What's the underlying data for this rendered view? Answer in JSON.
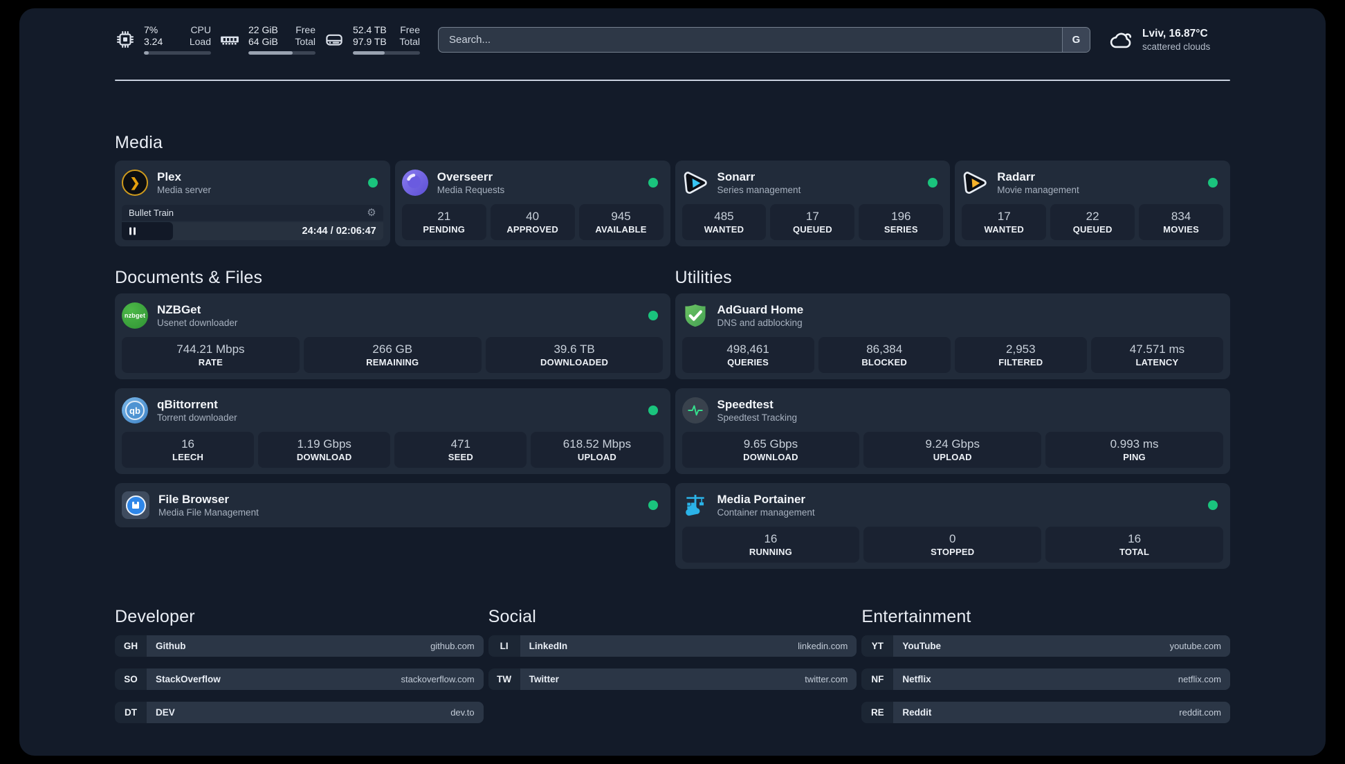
{
  "topbar": {
    "stats": [
      {
        "icon": "cpu-icon",
        "value_top": "7%",
        "value_bottom": "3.24",
        "label_top": "CPU",
        "label_bottom": "Load",
        "progress_pct": 7
      },
      {
        "icon": "ram-icon",
        "value_top": "22 GiB",
        "value_bottom": "64 GiB",
        "label_top": "Free",
        "label_bottom": "Total",
        "progress_pct": 66
      },
      {
        "icon": "disk-icon",
        "value_top": "52.4 TB",
        "value_bottom": "97.9 TB",
        "label_top": "Free",
        "label_bottom": "Total",
        "progress_pct": 47
      }
    ],
    "search": {
      "placeholder": "Search...",
      "provider_button": "G"
    },
    "weather": {
      "icon": "cloud-icon",
      "location": "Lviv, 16.87°C",
      "condition": "scattered clouds"
    }
  },
  "media": {
    "heading": "Media",
    "plex": {
      "icon": "plex-icon",
      "title": "Plex",
      "subtitle": "Media server",
      "status": "online",
      "now_playing": {
        "title": "Bullet Train",
        "time": "24:44 / 02:06:47",
        "elapsed_pct": 19.5
      }
    },
    "cards": [
      {
        "icon": "overseerr-icon",
        "title": "Overseerr",
        "subtitle": "Media Requests",
        "status": "online",
        "stats": [
          {
            "value": "21",
            "label": "PENDING"
          },
          {
            "value": "40",
            "label": "APPROVED"
          },
          {
            "value": "945",
            "label": "AVAILABLE"
          }
        ]
      },
      {
        "icon": "sonarr-icon",
        "title": "Sonarr",
        "subtitle": "Series management",
        "status": "online",
        "stats": [
          {
            "value": "485",
            "label": "WANTED"
          },
          {
            "value": "17",
            "label": "QUEUED"
          },
          {
            "value": "196",
            "label": "SERIES"
          }
        ]
      },
      {
        "icon": "radarr-icon",
        "title": "Radarr",
        "subtitle": "Movie management",
        "status": "online",
        "stats": [
          {
            "value": "17",
            "label": "WANTED"
          },
          {
            "value": "22",
            "label": "QUEUED"
          },
          {
            "value": "834",
            "label": "MOVIES"
          }
        ]
      }
    ]
  },
  "documents": {
    "heading": "Documents & Files",
    "cards": [
      {
        "icon": "nzbget-icon",
        "icon_text": "nzbget",
        "title": "NZBGet",
        "subtitle": "Usenet downloader",
        "status": "online",
        "stats": [
          {
            "value": "744.21 Mbps",
            "label": "RATE"
          },
          {
            "value": "266 GB",
            "label": "REMAINING"
          },
          {
            "value": "39.6 TB",
            "label": "DOWNLOADED"
          }
        ]
      },
      {
        "icon": "qbittorrent-icon",
        "icon_text": "qb",
        "title": "qBittorrent",
        "subtitle": "Torrent downloader",
        "status": "online",
        "stats": [
          {
            "value": "16",
            "label": "LEECH"
          },
          {
            "value": "1.19 Gbps",
            "label": "DOWNLOAD"
          },
          {
            "value": "471",
            "label": "SEED"
          },
          {
            "value": "618.52 Mbps",
            "label": "UPLOAD"
          }
        ]
      },
      {
        "icon": "filebrowser-icon",
        "title": "File Browser",
        "subtitle": "Media File Management",
        "status": "online",
        "stats": []
      }
    ]
  },
  "utilities": {
    "heading": "Utilities",
    "cards": [
      {
        "icon": "adguard-icon",
        "title": "AdGuard Home",
        "subtitle": "DNS and adblocking",
        "status": "none",
        "stats": [
          {
            "value": "498,461",
            "label": "QUERIES"
          },
          {
            "value": "86,384",
            "label": "BLOCKED"
          },
          {
            "value": "2,953",
            "label": "FILTERED"
          },
          {
            "value": "47.571 ms",
            "label": "LATENCY"
          }
        ]
      },
      {
        "icon": "speedtest-icon",
        "title": "Speedtest",
        "subtitle": "Speedtest Tracking",
        "status": "none",
        "stats": [
          {
            "value": "9.65 Gbps",
            "label": "DOWNLOAD"
          },
          {
            "value": "9.24 Gbps",
            "label": "UPLOAD"
          },
          {
            "value": "0.993 ms",
            "label": "PING"
          }
        ]
      },
      {
        "icon": "portainer-icon",
        "title": "Media Portainer",
        "subtitle": "Container management",
        "status": "online",
        "stats": [
          {
            "value": "16",
            "label": "RUNNING"
          },
          {
            "value": "0",
            "label": "STOPPED"
          },
          {
            "value": "16",
            "label": "TOTAL"
          }
        ]
      }
    ]
  },
  "links": {
    "developer": {
      "heading": "Developer",
      "items": [
        {
          "abbr": "GH",
          "name": "Github",
          "url": "github.com"
        },
        {
          "abbr": "SO",
          "name": "StackOverflow",
          "url": "stackoverflow.com"
        },
        {
          "abbr": "DT",
          "name": "DEV",
          "url": "dev.to"
        }
      ]
    },
    "social": {
      "heading": "Social",
      "items": [
        {
          "abbr": "LI",
          "name": "LinkedIn",
          "url": "linkedin.com"
        },
        {
          "abbr": "TW",
          "name": "Twitter",
          "url": "twitter.com"
        }
      ]
    },
    "entertainment": {
      "heading": "Entertainment",
      "items": [
        {
          "abbr": "YT",
          "name": "YouTube",
          "url": "youtube.com"
        },
        {
          "abbr": "NF",
          "name": "Netflix",
          "url": "netflix.com"
        },
        {
          "abbr": "RE",
          "name": "Reddit",
          "url": "reddit.com"
        }
      ]
    }
  },
  "colors": {
    "status_online": "#1ac47d",
    "plex_amber": "#e5a00d",
    "sonarr_blue": "#38c6f4",
    "radarr_yellow": "#f7b32b",
    "adguard_green": "#58b85c",
    "qbittorrent_blue": "#4d90cf",
    "nzbget_green": "#3fae44",
    "overseerr_purple": "#7a66e3",
    "portainer_blue": "#2bb3e8",
    "speedtest_pulse": "#35e08e"
  }
}
